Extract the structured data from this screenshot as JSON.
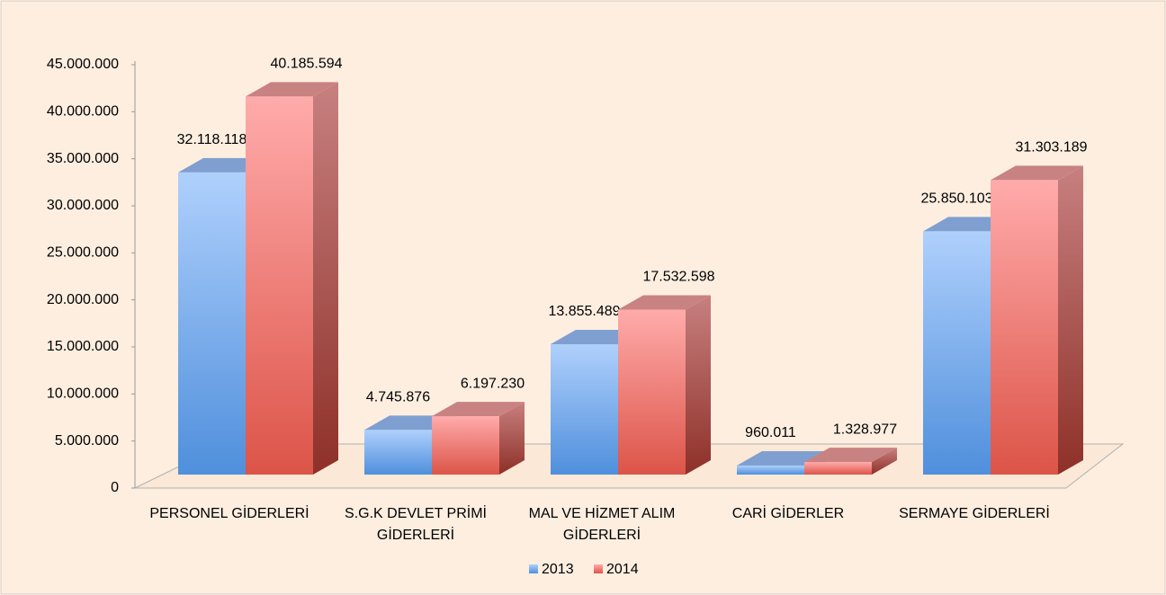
{
  "chart_data": {
    "type": "bar3d",
    "categories": [
      "PERSONEL GİDERLERİ",
      "S.G.K DEVLET PRİMİ GİDERLERİ",
      "MAL VE HİZMET ALIM GİDERLERİ",
      "CARİ GİDERLER",
      "SERMAYE GİDERLERİ"
    ],
    "series": [
      {
        "name": "2013",
        "color": "#5b9be0",
        "values": [
          32118118,
          4745876,
          13855489,
          960011,
          25850103
        ],
        "value_labels": [
          "32.118.118",
          "4.745.876",
          "13.855.489",
          "960.011",
          "25.850.103"
        ]
      },
      {
        "name": "2014",
        "color": "#e05a50",
        "values": [
          40185594,
          6197230,
          17532598,
          1328977,
          31303189
        ],
        "value_labels": [
          "40.185.594",
          "6.197.230",
          "17.532.598",
          "1.328.977",
          "31.303.189"
        ]
      }
    ],
    "ylim": [
      0,
      45000000
    ],
    "yticks": [
      0,
      {
        "value": 5000000,
        "label": "5.000.000"
      },
      {
        "value": 10000000,
        "label": "10.000.000"
      },
      {
        "value": 15000000,
        "label": "15.000.000"
      },
      {
        "value": 20000000,
        "label": "20.000.000"
      },
      {
        "value": 25000000,
        "label": "25.000.000"
      },
      {
        "value": 30000000,
        "label": "30.000.000"
      },
      {
        "value": 35000000,
        "label": "35.000.000"
      },
      {
        "value": 40000000,
        "label": "40.000.000"
      },
      {
        "value": 45000000,
        "label": "45.000.000"
      }
    ],
    "legend": "bottom"
  }
}
